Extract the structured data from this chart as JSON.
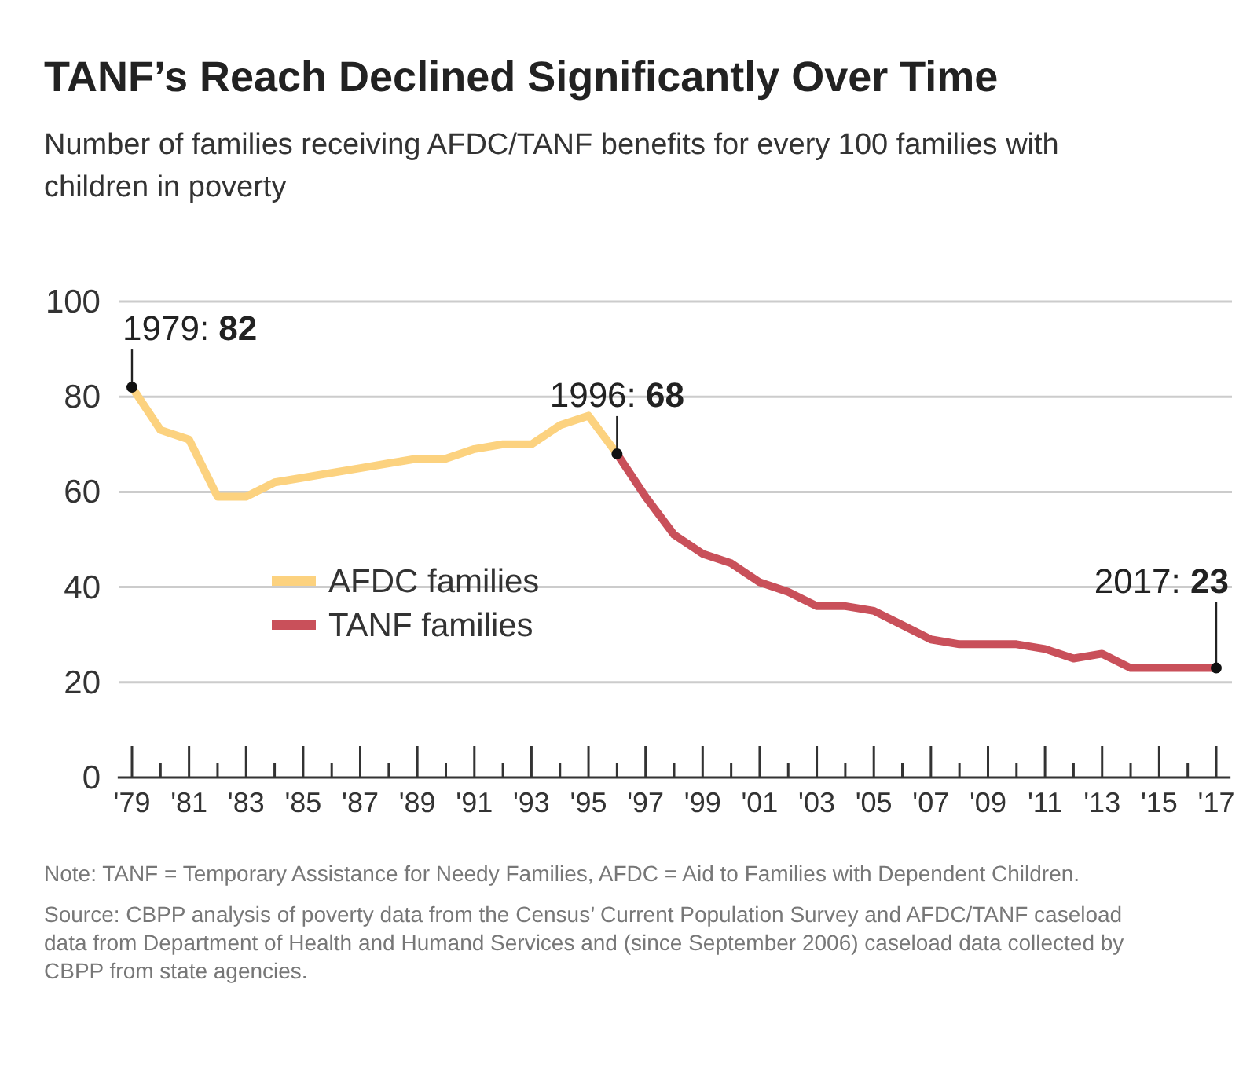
{
  "chart_data": {
    "type": "line",
    "title": "TANF’s Reach Declined Significantly Over Time",
    "subtitle": "Number of families receiving AFDC/TANF benefits for every 100 families with children in poverty",
    "series": [
      {
        "name": "AFDC families",
        "color": "#fcd27f",
        "x": [
          1979,
          1980,
          1981,
          1982,
          1983,
          1984,
          1985,
          1986,
          1987,
          1988,
          1989,
          1990,
          1991,
          1992,
          1993,
          1994,
          1995,
          1996
        ],
        "values": [
          82,
          73,
          71,
          59,
          59,
          62,
          63,
          64,
          65,
          66,
          67,
          67,
          69,
          70,
          70,
          74,
          76,
          68
        ]
      },
      {
        "name": "TANF families",
        "color": "#c9505a",
        "x": [
          1996,
          1997,
          1998,
          1999,
          2000,
          2001,
          2002,
          2003,
          2004,
          2005,
          2006,
          2007,
          2008,
          2009,
          2010,
          2011,
          2012,
          2013,
          2014,
          2015,
          2016,
          2017
        ],
        "values": [
          68,
          59,
          51,
          47,
          45,
          41,
          39,
          36,
          36,
          35,
          32,
          29,
          28,
          28,
          28,
          27,
          25,
          26,
          23,
          23,
          23,
          23
        ]
      }
    ],
    "xlim": [
      1978.5,
      2017.5
    ],
    "xticks": [
      {
        "value": 1979,
        "label": "'79"
      },
      {
        "value": 1980,
        "label": null
      },
      {
        "value": 1981,
        "label": "'81"
      },
      {
        "value": 1982,
        "label": null
      },
      {
        "value": 1983,
        "label": "'83"
      },
      {
        "value": 1984,
        "label": null
      },
      {
        "value": 1985,
        "label": "'85"
      },
      {
        "value": 1986,
        "label": null
      },
      {
        "value": 1987,
        "label": "'87"
      },
      {
        "value": 1988,
        "label": null
      },
      {
        "value": 1989,
        "label": "'89"
      },
      {
        "value": 1990,
        "label": null
      },
      {
        "value": 1991,
        "label": "'91"
      },
      {
        "value": 1992,
        "label": null
      },
      {
        "value": 1993,
        "label": "'93"
      },
      {
        "value": 1994,
        "label": null
      },
      {
        "value": 1995,
        "label": "'95"
      },
      {
        "value": 1996,
        "label": null
      },
      {
        "value": 1997,
        "label": "'97"
      },
      {
        "value": 1998,
        "label": null
      },
      {
        "value": 1999,
        "label": "'99"
      },
      {
        "value": 2000,
        "label": null
      },
      {
        "value": 2001,
        "label": "'01"
      },
      {
        "value": 2002,
        "label": null
      },
      {
        "value": 2003,
        "label": "'03"
      },
      {
        "value": 2004,
        "label": null
      },
      {
        "value": 2005,
        "label": "'05"
      },
      {
        "value": 2006,
        "label": null
      },
      {
        "value": 2007,
        "label": "'07"
      },
      {
        "value": 2008,
        "label": null
      },
      {
        "value": 2009,
        "label": "'09"
      },
      {
        "value": 2010,
        "label": null
      },
      {
        "value": 2011,
        "label": "'11"
      },
      {
        "value": 2012,
        "label": null
      },
      {
        "value": 2013,
        "label": "'13"
      },
      {
        "value": 2014,
        "label": null
      },
      {
        "value": 2015,
        "label": "'15"
      },
      {
        "value": 2016,
        "label": null
      },
      {
        "value": 2017,
        "label": "'17"
      }
    ],
    "ylim": [
      0,
      100
    ],
    "yticks": [
      0,
      20,
      40,
      60,
      80,
      100
    ],
    "grid": "y",
    "legend": "left",
    "marker": "none",
    "line_style": "solid",
    "annotations": [
      {
        "text": "1979: 82",
        "x": 1979,
        "y": 82
      },
      {
        "text": "1996: 68",
        "x": 1996,
        "y": 68
      },
      {
        "text": "2017: 23",
        "x": 2017,
        "y": 23
      },
      "Note: TANF = Temporary Assistance for Needy Families, AFDC = Aid to Families with Dependent Children.",
      "Source:  CBPP analysis of poverty data from the Census’ Current Population Survey and AFDC/TANF caseload data from Department of Health and Humand Services and (since September 2006) caseload data collected by CBPP from state agencies."
    ]
  }
}
